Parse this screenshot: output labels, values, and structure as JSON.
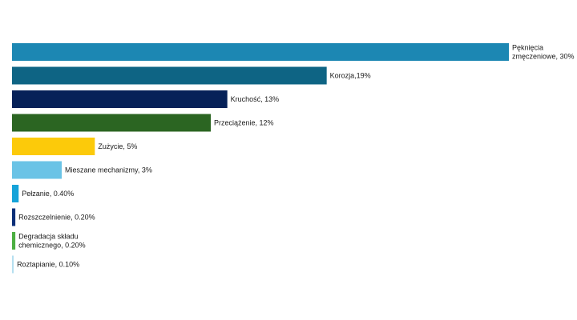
{
  "chart_data": {
    "type": "bar",
    "orientation": "horizontal",
    "title": "",
    "xlabel": "",
    "ylabel": "",
    "grid": false,
    "legend": "none",
    "xlim": [
      0,
      30
    ],
    "bars": [
      {
        "label_lines": [
          "Pęknięcia",
          "zmęczeniowe, 30%"
        ],
        "value": 30,
        "color": "#1c87b3"
      },
      {
        "label_lines": [
          "Korozja,19%"
        ],
        "value": 19,
        "color": "#0e6484"
      },
      {
        "label_lines": [
          "Kruchość, 13%"
        ],
        "value": 13,
        "color": "#062158"
      },
      {
        "label_lines": [
          "Przeciążenie, 12%"
        ],
        "value": 12,
        "color": "#2b6522"
      },
      {
        "label_lines": [
          "Zużycie, 5%"
        ],
        "value": 5,
        "color": "#fcca0a"
      },
      {
        "label_lines": [
          "Mieszane mechanizmy, 3%"
        ],
        "value": 3,
        "color": "#6ac3e6"
      },
      {
        "label_lines": [
          "Pełzanie, 0.40%"
        ],
        "value": 0.4,
        "color": "#15a3d9"
      },
      {
        "label_lines": [
          "Rozszczelnienie, 0.20%"
        ],
        "value": 0.2,
        "color": "#0b2f78"
      },
      {
        "label_lines": [
          "Degradacja składu",
          "chemicznego, 0.20%"
        ],
        "value": 0.2,
        "color": "#4caf42"
      },
      {
        "label_lines": [
          "Roztapianie, 0.10%"
        ],
        "value": 0.1,
        "color": "#b5dff0"
      }
    ]
  }
}
